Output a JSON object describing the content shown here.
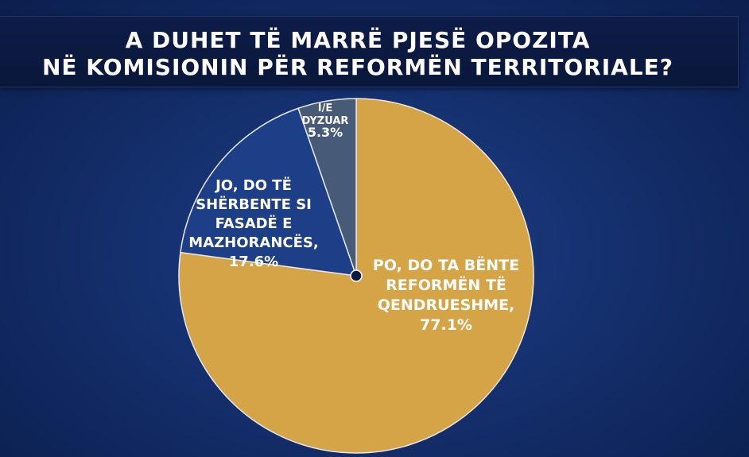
{
  "title": {
    "line1": "A DUHET TË MARRË PJESË OPOZITA",
    "line2": "NË KOMISIONIN PËR REFORMËN TERRITORIALE?"
  },
  "chart_data": {
    "type": "pie",
    "slices": [
      {
        "label_lines": [
          "PO, DO TA BËNTE",
          "REFORMËN TË",
          "QENDRUESHME,"
        ],
        "value_label": "77.1%",
        "value": 77.1,
        "color": "#d4a446"
      },
      {
        "label_lines": [
          "JO, DO TË",
          "SHËRBENTE SI",
          "FASADË E",
          "MAZHORANCËS,"
        ],
        "value_label": "17.6%",
        "value": 17.6,
        "color": "#1c3f88"
      },
      {
        "label_lines": [
          "I/E",
          "DYZUAR"
        ],
        "value_label": "5.3%",
        "value": 5.3,
        "color": "#475a78"
      }
    ]
  },
  "colors": {
    "center_dot": "#0b1a40",
    "slice_border": "#e8e8e8"
  }
}
